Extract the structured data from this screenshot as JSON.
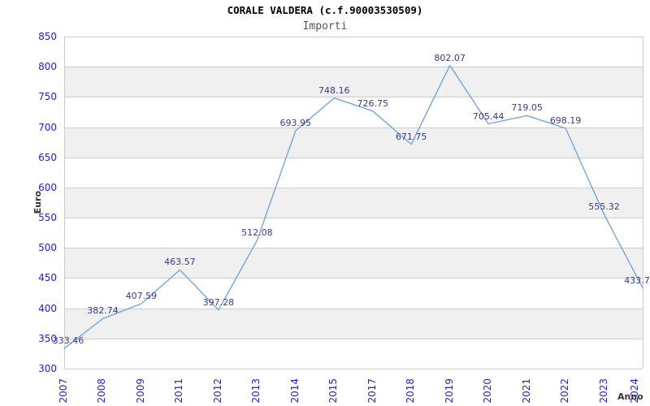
{
  "chart_data": {
    "type": "line",
    "title": "CORALE VALDERA (c.f.90003530509)",
    "subtitle": "Importi",
    "xlabel": "Anno",
    "ylabel": "Euro",
    "categories": [
      "2007",
      "2008",
      "2009",
      "2011",
      "2012",
      "2013",
      "2014",
      "2015",
      "2017",
      "2018",
      "2019",
      "2020",
      "2021",
      "2022",
      "2023",
      "2024"
    ],
    "values": [
      333.46,
      382.74,
      407.59,
      463.57,
      397.28,
      512.08,
      693.95,
      748.16,
      726.75,
      671.75,
      802.07,
      705.44,
      719.05,
      698.19,
      555.32,
      433.7
    ],
    "value_labels": [
      "333.46",
      "382.74",
      "407.59",
      "463.57",
      "397.28",
      "512.08",
      "693.95",
      "748.16",
      "726.75",
      "671.75",
      "802.07",
      "705.44",
      "719.05",
      "698.19",
      "555.32",
      "433.7"
    ],
    "ylim": [
      300,
      850
    ],
    "ytick_step": 50,
    "grid": true,
    "legend": false,
    "alternating_bands": true,
    "colors": {
      "line": "#74a5de",
      "tick_label": "#2222cc",
      "value_label": "#3a3a8c",
      "band": "#f0f0f0",
      "gridline": "#cccccc",
      "title": "#000000",
      "subtitle": "#555555",
      "axis_title": "#333333",
      "background": "#ffffff"
    }
  }
}
